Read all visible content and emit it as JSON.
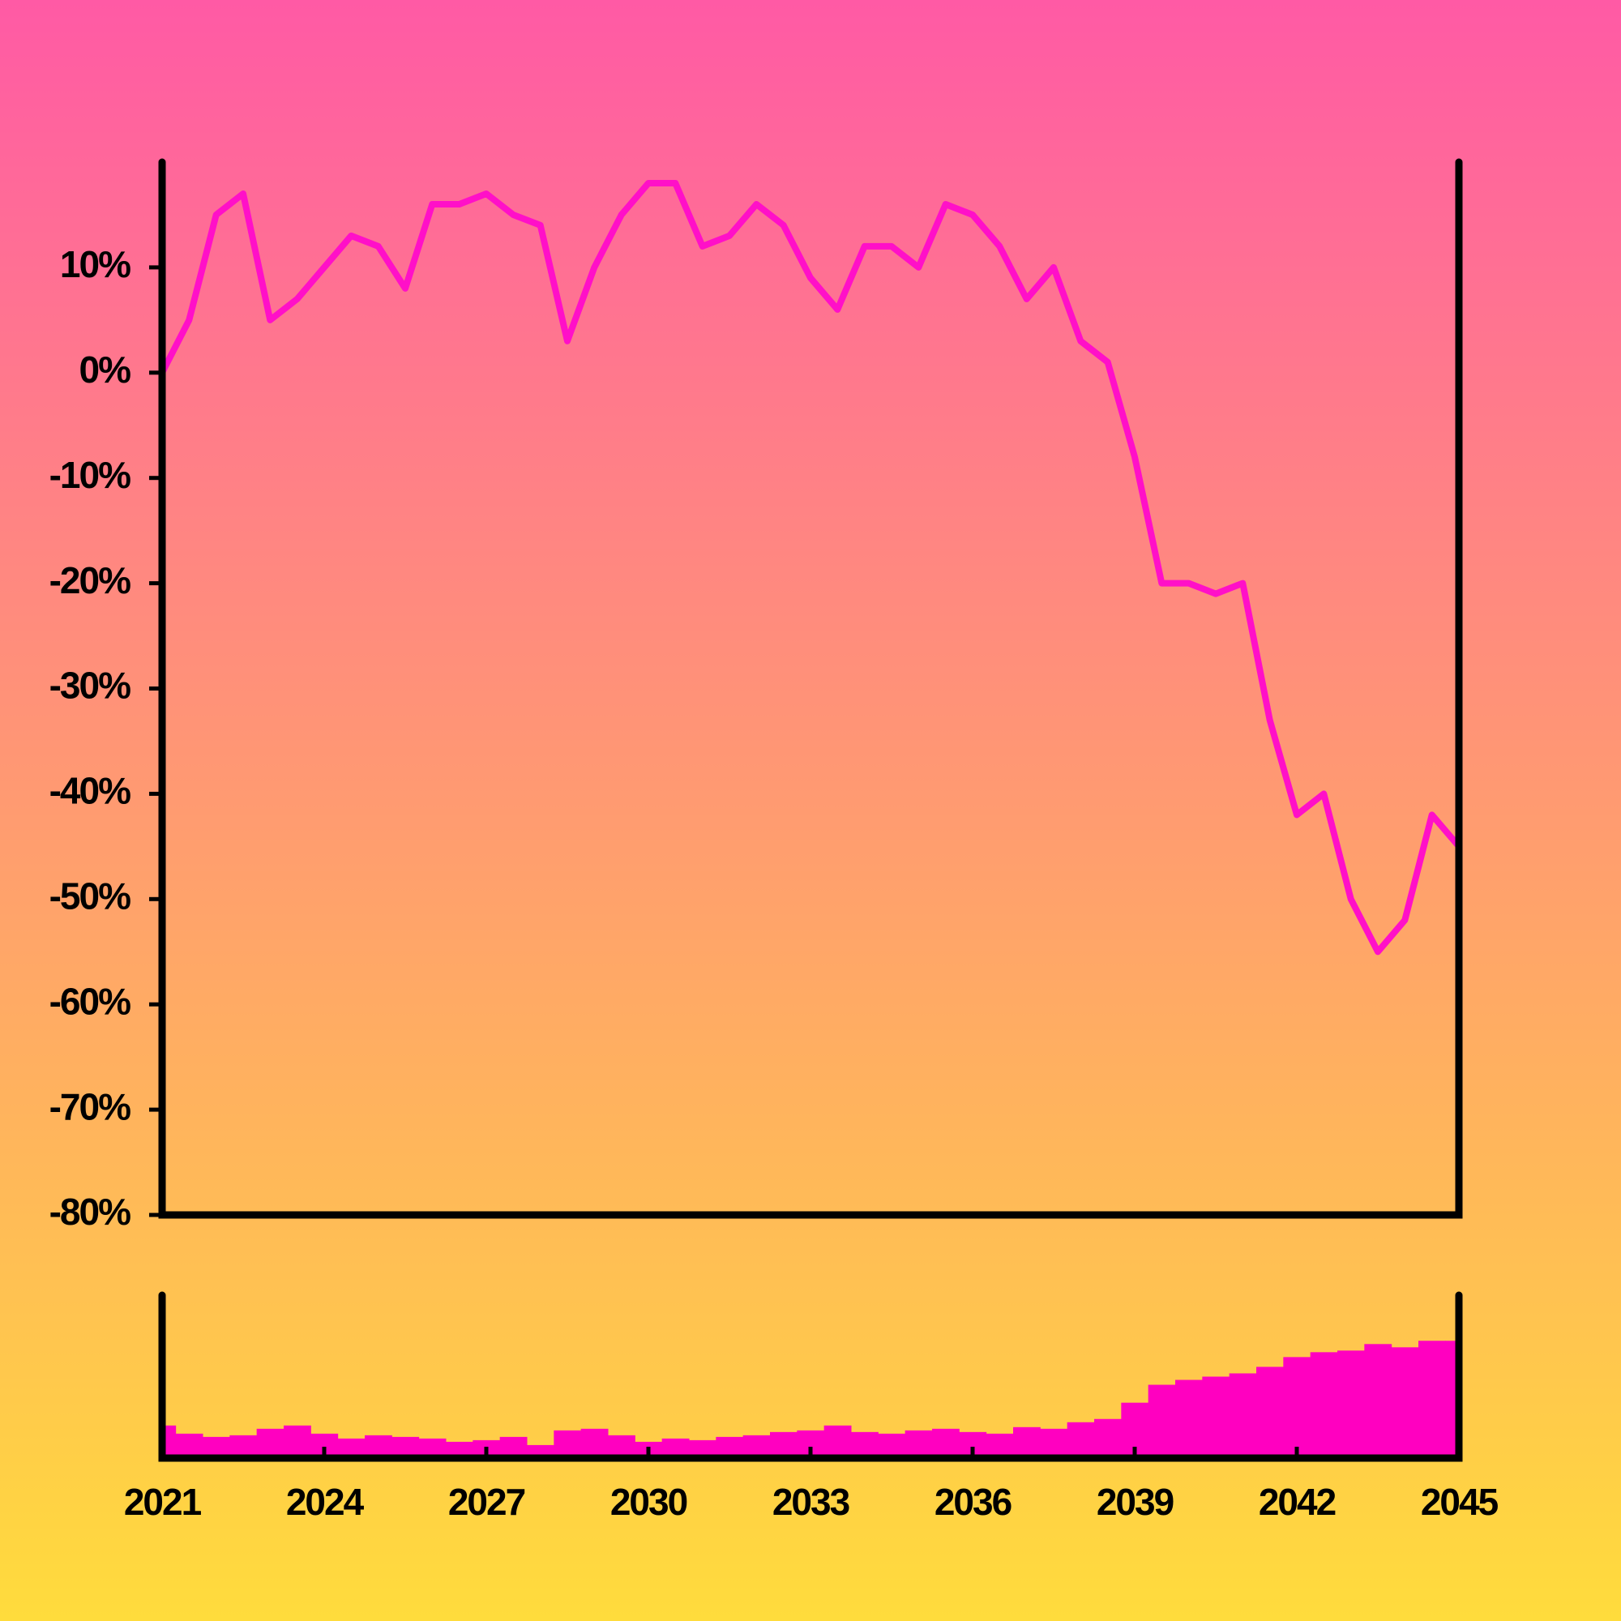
{
  "chart_data": [
    {
      "type": "line",
      "color": "#ff10c8",
      "x": [
        2021,
        2021.5,
        2022,
        2022.5,
        2023,
        2023.5,
        2024,
        2024.5,
        2025,
        2025.5,
        2026,
        2026.5,
        2027,
        2027.5,
        2028,
        2028.5,
        2029,
        2029.5,
        2030,
        2030.5,
        2031,
        2031.5,
        2032,
        2032.5,
        2033,
        2033.5,
        2034,
        2034.5,
        2035,
        2035.5,
        2036,
        2036.5,
        2037,
        2037.5,
        2038,
        2038.5,
        2039,
        2039.5,
        2040,
        2040.5,
        2041,
        2041.5,
        2042,
        2042.5,
        2043,
        2043.5,
        2044,
        2044.5,
        2045
      ],
      "values": [
        0,
        5,
        15,
        17,
        5,
        7,
        10,
        13,
        12,
        8,
        16,
        16,
        17,
        15,
        14,
        3,
        10,
        15,
        18,
        18,
        12,
        13,
        16,
        14,
        9,
        6,
        12,
        12,
        10,
        16,
        15,
        12,
        7,
        10,
        3,
        1,
        -8,
        -20,
        -20,
        -21,
        -20,
        -33,
        -42,
        -40,
        -50,
        -55,
        -52,
        -42,
        -45
      ],
      "xlim": [
        2021,
        2045
      ],
      "ylim": [
        -80,
        20
      ],
      "yticks": [
        {
          "value": -80,
          "label": "-80%"
        },
        {
          "value": -70,
          "label": "-70%"
        },
        {
          "value": -60,
          "label": "-60%"
        },
        {
          "value": -50,
          "label": "-50%"
        },
        {
          "value": -40,
          "label": "-40%"
        },
        {
          "value": -30,
          "label": "-30%"
        },
        {
          "value": -20,
          "label": "-20%"
        },
        {
          "value": -10,
          "label": "-10%"
        },
        {
          "value": 0,
          "label": "0%"
        },
        {
          "value": 10,
          "label": "10%"
        }
      ]
    },
    {
      "type": "bar",
      "color": "#ff00c0",
      "x": [
        2021,
        2021.5,
        2022,
        2022.5,
        2023,
        2023.5,
        2024,
        2024.5,
        2025,
        2025.5,
        2026,
        2026.5,
        2027,
        2027.5,
        2028,
        2028.5,
        2029,
        2029.5,
        2030,
        2030.5,
        2031,
        2031.5,
        2032,
        2032.5,
        2033,
        2033.5,
        2034,
        2034.5,
        2035,
        2035.5,
        2036,
        2036.5,
        2037,
        2037.5,
        2038,
        2038.5,
        2039,
        2039.5,
        2040,
        2040.5,
        2041,
        2041.5,
        2042,
        2042.5,
        2043,
        2043.5,
        2044,
        2044.5,
        2045
      ],
      "values": [
        20,
        15,
        13,
        14,
        18,
        20,
        15,
        12,
        14,
        13,
        12,
        10,
        11,
        13,
        8,
        17,
        18,
        14,
        10,
        12,
        11,
        13,
        14,
        16,
        17,
        20,
        16,
        15,
        17,
        18,
        16,
        15,
        19,
        18,
        22,
        24,
        34,
        45,
        48,
        50,
        52,
        56,
        62,
        65,
        66,
        70,
        68,
        72,
        72
      ],
      "xlim": [
        2021,
        2045
      ],
      "xticks": [
        2021,
        2024,
        2027,
        2030,
        2033,
        2036,
        2039,
        2042,
        2045
      ]
    }
  ]
}
